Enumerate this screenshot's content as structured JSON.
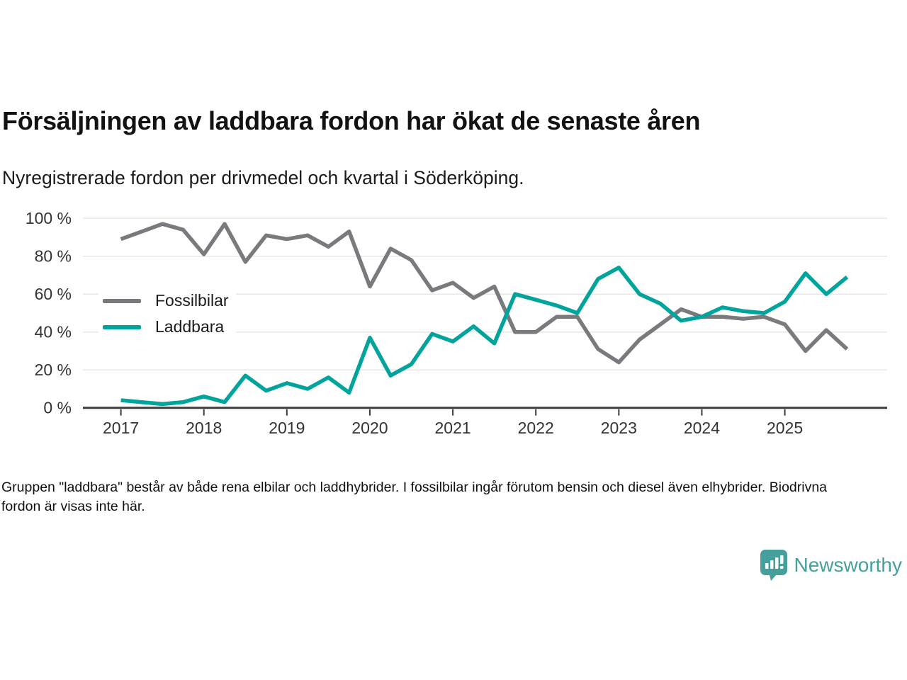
{
  "header": {
    "title": "Försäljningen av laddbara fordon har ökat de senaste åren",
    "subtitle": "Nyregistrerade fordon per drivmedel och kvartal i Söderköping."
  },
  "footnote": "Gruppen \"laddbara\" består av både rena elbilar och laddhybrider. I fossilbilar ingår förutom bensin och diesel även elhybrider. Biodrivna fordon är visas inte här.",
  "branding": {
    "name": "Newsworthy",
    "logo_icon": "bar-chart-speech-bubble-icon",
    "color": "#45a09b"
  },
  "colors": {
    "fossil": "#7a7a7e",
    "laddbara": "#00a49c",
    "grid": "#e7e7e7",
    "axis": "#3d3d3d",
    "tick_text": "#333333"
  },
  "chart_data": {
    "type": "line",
    "title": "Försäljningen av laddbara fordon har ökat de senaste åren",
    "subtitle": "Nyregistrerade fordon per drivmedel och kvartal i Söderköping.",
    "x_unit": "quarter",
    "x": [
      "2017 Q1",
      "2017 Q2",
      "2017 Q3",
      "2017 Q4",
      "2018 Q1",
      "2018 Q2",
      "2018 Q3",
      "2018 Q4",
      "2019 Q1",
      "2019 Q2",
      "2019 Q3",
      "2019 Q4",
      "2020 Q1",
      "2020 Q2",
      "2020 Q3",
      "2020 Q4",
      "2021 Q1",
      "2021 Q2",
      "2021 Q3",
      "2021 Q4",
      "2022 Q1",
      "2022 Q2",
      "2022 Q3",
      "2022 Q4",
      "2023 Q1",
      "2023 Q2",
      "2023 Q3",
      "2023 Q4",
      "2024 Q1",
      "2024 Q2",
      "2024 Q3",
      "2024 Q4",
      "2025 Q1",
      "2025 Q2",
      "2025 Q3",
      "2025 Q4"
    ],
    "series": [
      {
        "name": "Fossilbilar",
        "color": "#7a7a7e",
        "values": [
          89,
          93,
          97,
          94,
          81,
          97,
          77,
          91,
          89,
          91,
          85,
          93,
          64,
          84,
          78,
          62,
          66,
          58,
          64,
          40,
          40,
          48,
          48,
          31,
          24,
          36,
          44,
          52,
          48,
          48,
          47,
          48,
          44,
          30,
          41,
          31
        ]
      },
      {
        "name": "Laddbara",
        "color": "#00a49c",
        "values": [
          4,
          3,
          2,
          3,
          6,
          3,
          17,
          9,
          13,
          10,
          16,
          8,
          37,
          17,
          23,
          39,
          35,
          43,
          34,
          60,
          57,
          54,
          50,
          68,
          74,
          60,
          55,
          46,
          48,
          53,
          51,
          50,
          56,
          71,
          60,
          69
        ]
      }
    ],
    "ylim": [
      0,
      100
    ],
    "yticks": [
      0,
      20,
      40,
      60,
      80,
      100
    ],
    "ytick_suffix": " %",
    "xticks": [
      2017,
      2018,
      2019,
      2020,
      2021,
      2022,
      2023,
      2024,
      2025
    ],
    "grid": "horizontal",
    "legend_position": "inside-upper-left"
  }
}
